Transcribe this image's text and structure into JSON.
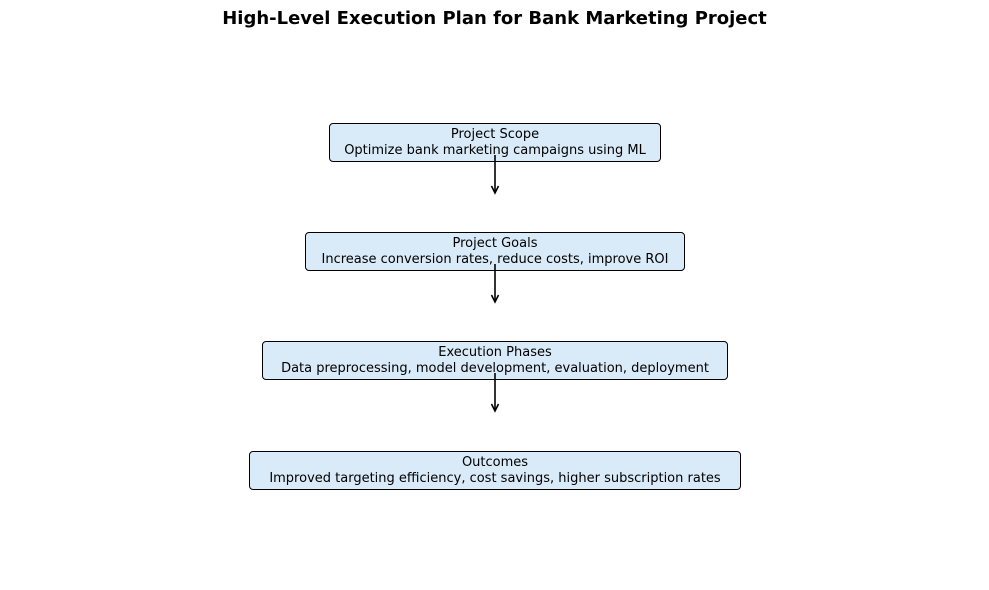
{
  "title": "High-Level Execution Plan for Bank Marketing Project",
  "steps": [
    {
      "heading": "Project Scope",
      "detail": "Optimize bank marketing campaigns using ML"
    },
    {
      "heading": "Project Goals",
      "detail": "Increase conversion rates, reduce costs, improve ROI"
    },
    {
      "heading": "Execution Phases",
      "detail": "Data preprocessing, model development, evaluation, deployment"
    },
    {
      "heading": "Outcomes",
      "detail": "Improved targeting efficiency, cost savings, higher subscription rates"
    }
  ],
  "colors": {
    "box_fill": "#d9eaf8",
    "box_border": "#000000",
    "arrow": "#000000"
  }
}
